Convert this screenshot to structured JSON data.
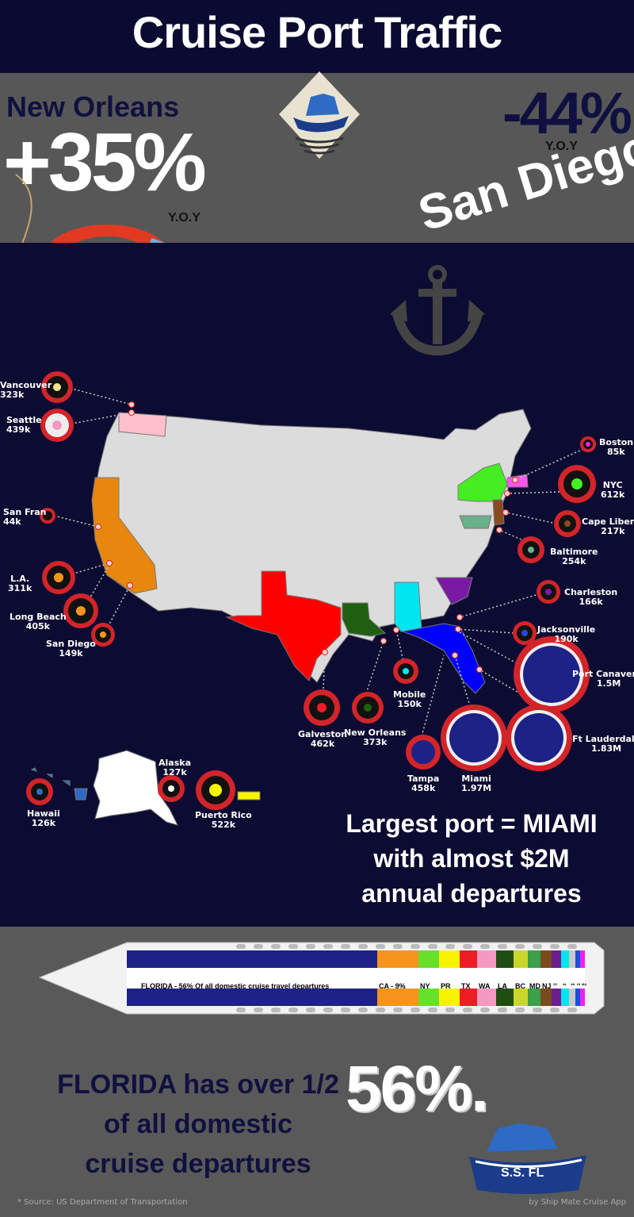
{
  "title": "Cruise Port Traffic",
  "highlights": {
    "new_orleans": {
      "city": "New Orleans",
      "change": "+35%",
      "yoy": "Y.O.Y"
    },
    "san_diego": {
      "city": "San Diego",
      "change": "-44%",
      "yoy": "Y.O.Y"
    }
  },
  "ports": [
    {
      "id": "vancouver",
      "name": "Vancouver",
      "value": "323k"
    },
    {
      "id": "seattle",
      "name": "Seattle",
      "value": "439k"
    },
    {
      "id": "san-fran",
      "name": "San Fran",
      "value": "44k"
    },
    {
      "id": "la",
      "name": "L.A.",
      "value": "311k"
    },
    {
      "id": "long-beach",
      "name": "Long Beach",
      "value": "405k"
    },
    {
      "id": "san-diego",
      "name": "San Diego",
      "value": "149k"
    },
    {
      "id": "boston",
      "name": "Boston",
      "value": "85k"
    },
    {
      "id": "nyc",
      "name": "NYC",
      "value": "612k"
    },
    {
      "id": "cape-liberty",
      "name": "Cape Liberty",
      "value": "217k"
    },
    {
      "id": "baltimore",
      "name": "Baltimore",
      "value": "254k"
    },
    {
      "id": "charleston",
      "name": "Charleston",
      "value": "166k"
    },
    {
      "id": "jacksonville",
      "name": "Jacksonville",
      "value": "190k"
    },
    {
      "id": "port-canaveral",
      "name": "Port Canaveral",
      "value": "1.5M"
    },
    {
      "id": "ft-lauderdale",
      "name": "Ft Lauderdale",
      "value": "1.83M"
    },
    {
      "id": "miami",
      "name": "Miami",
      "value": "1.97M"
    },
    {
      "id": "tampa",
      "name": "Tampa",
      "value": "458k"
    },
    {
      "id": "mobile",
      "name": "Mobile",
      "value": "150k"
    },
    {
      "id": "new-orleans",
      "name": "New Orleans",
      "value": "373k"
    },
    {
      "id": "galveston",
      "name": "Galveston",
      "value": "462k"
    },
    {
      "id": "alaska",
      "name": "Alaska",
      "value": "127k"
    },
    {
      "id": "hawaii",
      "name": "Hawaii",
      "value": "126k"
    },
    {
      "id": "puerto-rico",
      "name": "Puerto Rico",
      "value": "522k"
    }
  ],
  "largest_port": [
    "Largest port = MIAMI",
    "with almost $2M",
    "annual departures"
  ],
  "ship_bar": {
    "florida_label": "FLORIDA  -  56% Of all domestic cruise travel departures",
    "segments": [
      {
        "label": "CA - 9%",
        "color": "#f7941d"
      },
      {
        "label": "NY",
        "color": "#66e02a"
      },
      {
        "label": "PR",
        "color": "#f8f400"
      },
      {
        "label": "TX",
        "color": "#ee1c24"
      },
      {
        "label": "WA",
        "color": "#f49ac1"
      },
      {
        "label": "LA",
        "color": "#1f4d12"
      },
      {
        "label": "BC",
        "color": "#c9d62a"
      },
      {
        "label": "MD",
        "color": "#3aa04a"
      },
      {
        "label": "NJ",
        "color": "#7a4b1e"
      },
      {
        "label": "SC",
        "color": "#6c1d8e"
      },
      {
        "label": "AL",
        "color": "#00e5ee"
      },
      {
        "label": "AK",
        "color": "#c8c8c8"
      },
      {
        "label": "HI",
        "color": "#1c4ce0"
      },
      {
        "label": "MA",
        "color": "#ee22ee"
      }
    ],
    "florida_color": "#1d2286"
  },
  "bottom": {
    "lines": [
      "FLORIDA has over 1/2",
      "of all domestic",
      "cruise departures"
    ],
    "percent": "56%.",
    "logo_text": "S.S. FL",
    "source": "*  Source:   US Department of Transportation",
    "credit": "by Ship Mate Cruise App"
  },
  "colors": {
    "navy": "#0c0c32",
    "gray": "#575757",
    "ring_red": "#d3242a"
  }
}
